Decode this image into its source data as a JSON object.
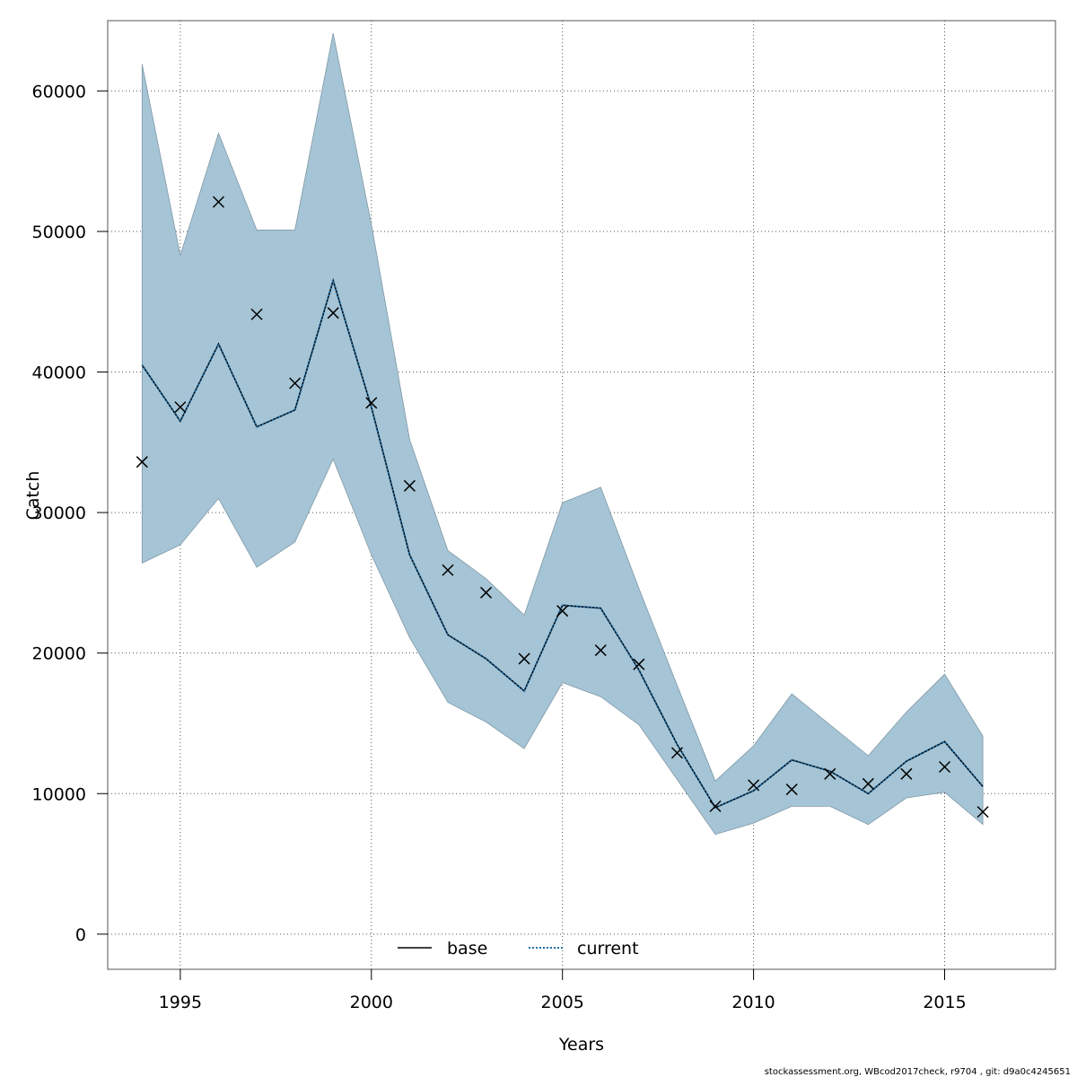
{
  "chart_data": {
    "type": "line",
    "xlabel": "Years",
    "ylabel": "Catch",
    "xlim": [
      1993.1,
      2017.9
    ],
    "ylim": [
      -2500,
      65000
    ],
    "x_ticks": [
      1995,
      2000,
      2005,
      2010,
      2015
    ],
    "y_ticks": [
      0,
      10000,
      20000,
      30000,
      40000,
      50000,
      60000
    ],
    "grid": true,
    "legend_position": "bottom",
    "legend": [
      {
        "label": "base",
        "style": "solid",
        "color": "#000000"
      },
      {
        "label": "current",
        "style": "dotted",
        "color": "#1f6fa8"
      }
    ],
    "band_color": "#a5c4d5",
    "x": [
      1994,
      1995,
      1996,
      1997,
      1998,
      1999,
      2000,
      2001,
      2002,
      2003,
      2004,
      2005,
      2006,
      2007,
      2008,
      2009,
      2010,
      2011,
      2012,
      2013,
      2014,
      2015,
      2016
    ],
    "series": [
      {
        "name": "base",
        "values": [
          40500,
          36500,
          42000,
          36100,
          37300,
          46500,
          37500,
          27000,
          21300,
          19600,
          17300,
          23400,
          23200,
          18800,
          13500,
          9000,
          10200,
          12400,
          11600,
          10000,
          12300,
          13700,
          10500
        ]
      },
      {
        "name": "current",
        "values": [
          40500,
          36500,
          42000,
          36100,
          37300,
          46500,
          37500,
          27000,
          21300,
          19600,
          17300,
          23400,
          23200,
          18800,
          13500,
          9000,
          10200,
          12400,
          11600,
          10000,
          12300,
          13700,
          10500
        ]
      }
    ],
    "band_upper": [
      61900,
      48300,
      57000,
      50100,
      50100,
      64100,
      50500,
      35200,
      27300,
      25300,
      22700,
      30700,
      31800,
      24600,
      17700,
      10900,
      13400,
      17100,
      14900,
      12700,
      15800,
      18500,
      14100
    ],
    "band_lower": [
      26400,
      27700,
      31000,
      26100,
      27900,
      33800,
      27000,
      21100,
      16500,
      15100,
      13200,
      17900,
      16900,
      14900,
      11000,
      7100,
      7900,
      9100,
      9100,
      7800,
      9700,
      10100,
      7800
    ],
    "observed": [
      33600,
      37500,
      52100,
      44100,
      39200,
      44200,
      37800,
      31900,
      25900,
      24300,
      19600,
      23000,
      20200,
      19200,
      12900,
      9100,
      10600,
      10300,
      11400,
      10700,
      11400,
      11900,
      8700
    ]
  },
  "footer_text": "stockassessment.org, WBcod2017check, r9704 , git: d9a0c4245651"
}
